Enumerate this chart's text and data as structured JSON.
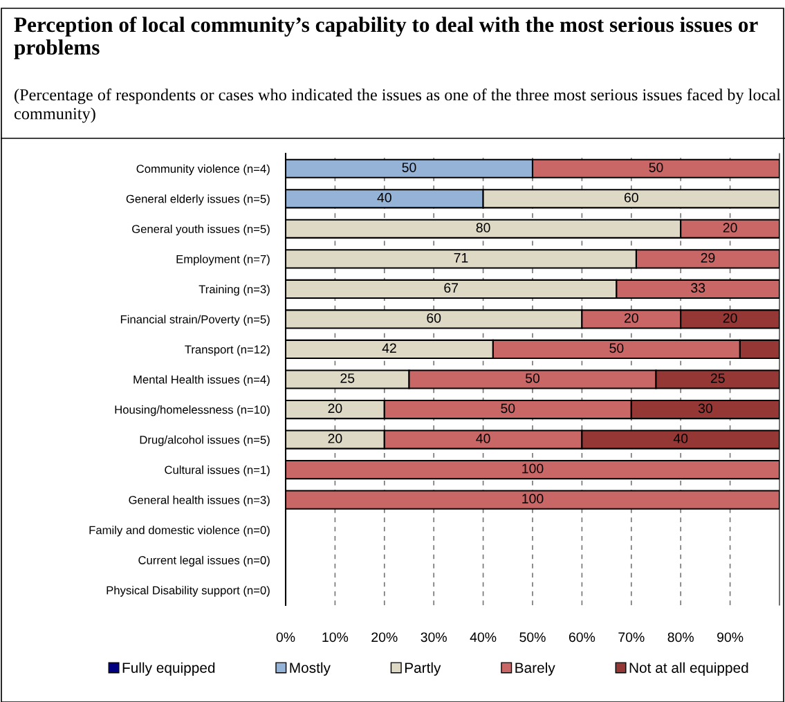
{
  "chart_data": {
    "type": "bar",
    "orientation": "horizontal",
    "stacked": true,
    "title": "Perception of local community’s capability to deal with the most serious issues or problems",
    "subtitle": "(Percentage of respondents or cases who indicated the issues as one of the three most serious issues faced by local community)",
    "categories": [
      "Community violence (n=4)",
      "General elderly issues (n=5)",
      "General youth issues (n=5)",
      "Employment (n=7)",
      "Training (n=3)",
      "Financial strain/Poverty (n=5)",
      "Transport (n=12)",
      "Mental Health issues (n=4)",
      "Housing/homelessness (n=10)",
      "Drug/alcohol issues (n=5)",
      "Cultural issues (n=1)",
      "General health issues (n=3)",
      "Family and domestic violence (n=0)",
      "Current legal issues (n=0)",
      "Physical Disability support (n=0)"
    ],
    "series": [
      {
        "name": "Fully equipped",
        "color": "#000080",
        "values": [
          null,
          null,
          null,
          null,
          null,
          null,
          null,
          null,
          null,
          null,
          null,
          null,
          null,
          null,
          null
        ]
      },
      {
        "name": "Mostly",
        "color": "#95b3d7",
        "values": [
          50,
          40,
          null,
          null,
          null,
          null,
          null,
          null,
          null,
          null,
          null,
          null,
          null,
          null,
          null
        ]
      },
      {
        "name": "Partly",
        "color": "#ddd9c4",
        "values": [
          null,
          60,
          80,
          71,
          67,
          60,
          42,
          25,
          20,
          20,
          null,
          null,
          null,
          null,
          null
        ]
      },
      {
        "name": "Barely",
        "color": "#c96666",
        "values": [
          50,
          null,
          20,
          29,
          33,
          20,
          50,
          50,
          50,
          40,
          100,
          100,
          null,
          null,
          null
        ]
      },
      {
        "name": "Not at all equipped",
        "color": "#953735",
        "values": [
          null,
          null,
          null,
          null,
          null,
          20,
          8,
          25,
          30,
          40,
          null,
          null,
          null,
          null,
          null
        ],
        "value_labels": [
          null,
          null,
          null,
          null,
          null,
          "20",
          null,
          "25",
          "30",
          "40",
          null,
          null,
          null,
          null,
          null
        ]
      }
    ],
    "data_labels": true,
    "xlim": [
      0,
      100
    ],
    "xticks": [
      {
        "value": 0,
        "label": "0%"
      },
      {
        "value": 10,
        "label": "10%"
      },
      {
        "value": 20,
        "label": "20%"
      },
      {
        "value": 30,
        "label": "30%"
      },
      {
        "value": 40,
        "label": "40%"
      },
      {
        "value": 50,
        "label": "50%"
      },
      {
        "value": 60,
        "label": "60%"
      },
      {
        "value": 70,
        "label": "70%"
      },
      {
        "value": 80,
        "label": "80%"
      },
      {
        "value": 90,
        "label": "90%"
      }
    ],
    "grid": "x",
    "legend": "bottom"
  }
}
